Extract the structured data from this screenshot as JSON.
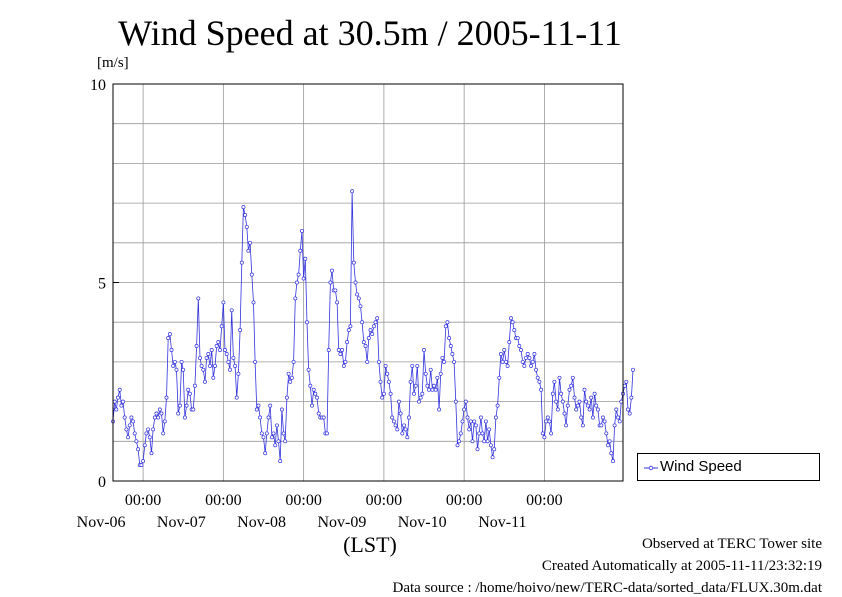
{
  "chart_data": {
    "type": "line",
    "title": "Wind Speed at 30.5m / 2005-11-11",
    "ylabel": "[m/s]",
    "xlabel": "(LST)",
    "ylim": [
      0,
      10
    ],
    "yticks": [
      "0",
      "5",
      "10"
    ],
    "xlim": [
      "2005-11-05 15:00",
      "2005-11-11 23:30"
    ],
    "xticks": [
      {
        "time": "00:00",
        "date": "Nov-06",
        "at": "2005-11-06 00:00"
      },
      {
        "time": "00:00",
        "date": "Nov-07",
        "at": "2005-11-07 00:00"
      },
      {
        "time": "00:00",
        "date": "Nov-08",
        "at": "2005-11-08 00:00"
      },
      {
        "time": "00:00",
        "date": "Nov-09",
        "at": "2005-11-09 00:00"
      },
      {
        "time": "00:00",
        "date": "Nov-10",
        "at": "2005-11-10 00:00"
      },
      {
        "time": "00:00",
        "date": "Nov-11",
        "at": "2005-11-11 00:00"
      }
    ],
    "grid": true,
    "legend_position": "right",
    "series": [
      {
        "name": "Wind Speed",
        "color": "#3333dd",
        "x_start": "2005-11-05 15:00",
        "x_step_minutes": 30,
        "values": [
          1.5,
          2.0,
          1.8,
          2.1,
          2.3,
          1.9,
          2.0,
          1.6,
          1.3,
          1.1,
          1.4,
          1.6,
          1.5,
          1.2,
          1.0,
          0.8,
          0.4,
          0.4,
          0.5,
          0.9,
          1.2,
          1.3,
          1.1,
          0.7,
          1.3,
          1.6,
          1.7,
          1.6,
          1.8,
          1.7,
          1.2,
          1.5,
          2.1,
          3.6,
          3.7,
          3.3,
          2.9,
          3.0,
          2.8,
          1.7,
          1.9,
          3.0,
          2.8,
          1.6,
          1.9,
          2.3,
          2.2,
          1.8,
          1.8,
          2.4,
          3.4,
          4.6,
          3.1,
          2.9,
          2.8,
          2.5,
          3.1,
          3.2,
          2.9,
          3.3,
          2.6,
          2.9,
          3.4,
          3.5,
          3.3,
          3.9,
          4.5,
          3.3,
          3.2,
          3.0,
          2.8,
          4.3,
          3.1,
          2.9,
          2.1,
          2.7,
          3.8,
          5.5,
          6.9,
          6.7,
          6.4,
          5.8,
          6.0,
          5.2,
          4.5,
          3.0,
          1.8,
          1.9,
          1.6,
          1.2,
          1.1,
          0.7,
          1.2,
          1.6,
          1.9,
          1.1,
          1.2,
          0.9,
          1.4,
          1.0,
          0.5,
          1.8,
          1.2,
          1.0,
          2.1,
          2.7,
          2.5,
          2.6,
          3.0,
          4.6,
          5.0,
          5.2,
          5.8,
          6.3,
          5.1,
          5.6,
          4.0,
          2.8,
          2.4,
          1.9,
          2.3,
          2.2,
          2.1,
          1.7,
          1.6,
          1.6,
          1.6,
          1.2,
          1.2,
          3.3,
          5.0,
          5.3,
          4.8,
          4.8,
          4.5,
          3.3,
          3.2,
          3.3,
          2.9,
          3.0,
          3.5,
          3.8,
          3.9,
          7.3,
          5.5,
          5.0,
          4.7,
          4.6,
          4.4,
          4.0,
          3.5,
          3.4,
          3.0,
          3.6,
          3.8,
          3.7,
          3.9,
          4.0,
          4.1,
          3.0,
          2.5,
          2.1,
          2.2,
          2.9,
          2.7,
          2.5,
          2.2,
          1.6,
          1.5,
          1.4,
          1.3,
          2.0,
          1.7,
          1.2,
          1.4,
          1.3,
          1.1,
          1.6,
          2.5,
          2.9,
          2.2,
          2.4,
          2.9,
          2.0,
          2.1,
          2.2,
          3.3,
          2.7,
          2.4,
          2.3,
          2.8,
          2.3,
          2.4,
          2.3,
          2.6,
          1.8,
          2.7,
          3.1,
          3.0,
          3.9,
          4.0,
          3.6,
          3.4,
          3.2,
          3.0,
          2.0,
          0.9,
          1.0,
          1.2,
          1.5,
          1.8,
          2.0,
          1.6,
          1.3,
          1.5,
          1.0,
          1.5,
          1.4,
          0.8,
          1.2,
          1.6,
          1.2,
          1.0,
          1.5,
          1.0,
          1.3,
          0.9,
          0.6,
          0.8,
          1.6,
          1.9,
          2.6,
          3.2,
          3.0,
          3.3,
          3.0,
          2.9,
          3.5,
          4.1,
          4.0,
          3.8,
          3.6,
          3.6,
          3.4,
          3.3,
          3.0,
          2.9,
          3.1,
          3.2,
          3.1,
          2.9,
          3.0,
          3.2,
          2.8,
          2.6,
          2.5,
          2.3,
          1.2,
          1.1,
          1.5,
          1.6,
          1.5,
          1.2,
          2.2,
          2.5,
          2.0,
          1.8,
          2.6,
          2.2,
          2.0,
          1.7,
          1.4,
          1.9,
          2.3,
          2.4,
          2.6,
          2.1,
          1.8,
          1.9,
          2.0,
          1.6,
          1.4,
          2.3,
          2.0,
          1.9,
          1.8,
          2.1,
          1.6,
          2.2,
          1.9,
          1.8,
          1.4,
          1.4,
          1.6,
          1.5,
          1.2,
          0.9,
          1.0,
          0.7,
          0.5,
          1.4,
          1.8,
          1.6,
          1.5,
          2.0,
          2.2,
          2.4,
          2.5,
          1.8,
          1.7,
          2.1,
          2.8
        ]
      }
    ]
  },
  "footer": {
    "line1": "Observed at TERC Tower site",
    "line2": "Created Automatically at 2005-11-11/23:32:19",
    "line3": "Data source : /home/hoivo/new/TERC-data/sorted_data/FLUX.30m.dat"
  }
}
